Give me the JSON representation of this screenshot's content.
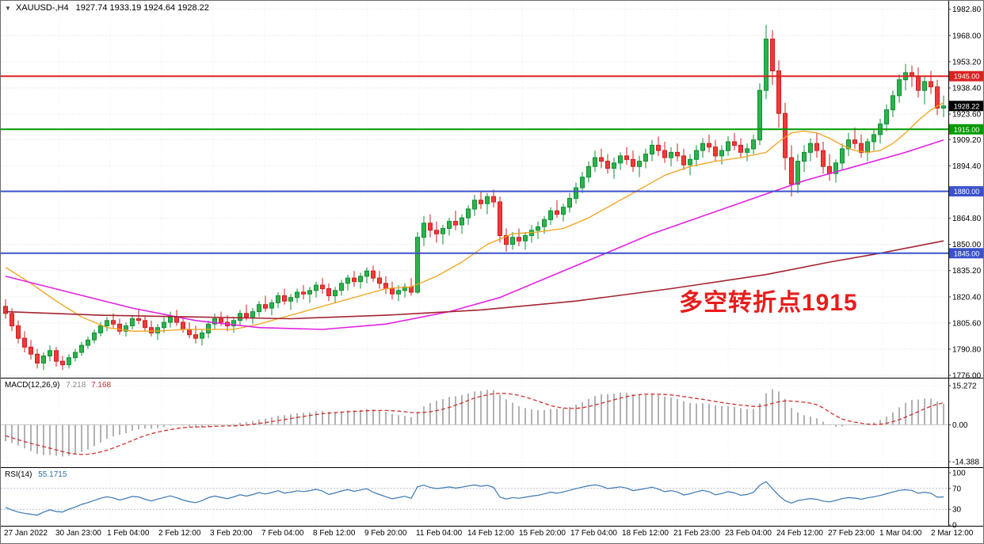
{
  "window": {
    "symbol": "XAUUSD-,H4",
    "ohlc": "1927.74 1933.19 1924.64 1928.22"
  },
  "annotation": {
    "text": "多空转折点1915",
    "color": "#e81c1c"
  },
  "chart_data": {
    "type": "candlestick",
    "symbol": "XAUUSD",
    "timeframe": "H4",
    "title": "XAUUSD-,H4",
    "current_price": 1928.22,
    "current_price_label": "1928.22",
    "y_axis": {
      "min": 1774.7,
      "max": 1987.6,
      "tick_labels": [
        "1982.80",
        "1968.00",
        "1953.20",
        "1938.40",
        "1923.60",
        "1909.20",
        "1894.40",
        "1864.80",
        "1850.00",
        "1835.20",
        "1820.40",
        "1805.60",
        "1790.80",
        "1776.00"
      ]
    },
    "x_tick_labels": [
      "27 Jan 2022",
      "30 Jan 23:00",
      "1 Feb 04:00",
      "2 Feb 12:00",
      "3 Feb 20:00",
      "7 Feb 04:00",
      "8 Feb 12:00",
      "9 Feb 20:00",
      "11 Feb 04:00",
      "14 Feb 12:00",
      "15 Feb 20:00",
      "17 Feb 04:00",
      "18 Feb 12:00",
      "21 Feb 23:00",
      "23 Feb 04:00",
      "24 Feb 12:00",
      "27 Feb 23:00",
      "1 Mar 04:00",
      "2 Mar 12:00"
    ],
    "horizontal_lines": [
      {
        "price": 1945.0,
        "label": "1945.00",
        "color": "#dd2222"
      },
      {
        "price": 1915.0,
        "label": "1915.00",
        "color": "#009a00"
      },
      {
        "price": 1880.0,
        "label": "1880.00",
        "color": "#3b52cc"
      },
      {
        "price": 1845.0,
        "label": "1845.00",
        "color": "#3b52cc"
      }
    ],
    "style": {
      "up_fill": "#2db24d",
      "up_stroke": "#0e8f32",
      "down_fill": "#ef3a3a",
      "down_stroke": "#cf1d1d",
      "macd_hist": "#b2b2b2",
      "macd_signal": "#d03030",
      "rsi_line": "#3a78b5",
      "grid": "#e2e2e2"
    },
    "moving_averages": [
      {
        "name": "fast-orange",
        "color": "#f2a21a",
        "width": 1.3,
        "anchors": [
          [
            0,
            1837
          ],
          [
            4,
            1828
          ],
          [
            8,
            1818
          ],
          [
            12,
            1809
          ],
          [
            16,
            1803
          ],
          [
            20,
            1801
          ],
          [
            24,
            1801
          ],
          [
            28,
            1802
          ],
          [
            32,
            1802
          ],
          [
            36,
            1802
          ],
          [
            40,
            1805
          ],
          [
            44,
            1809
          ],
          [
            48,
            1813
          ],
          [
            52,
            1817
          ],
          [
            56,
            1821
          ],
          [
            60,
            1825
          ],
          [
            64,
            1826
          ],
          [
            68,
            1832
          ],
          [
            72,
            1840
          ],
          [
            76,
            1850
          ],
          [
            80,
            1856
          ],
          [
            84,
            1857
          ],
          [
            88,
            1859
          ],
          [
            92,
            1865
          ],
          [
            96,
            1873
          ],
          [
            100,
            1881
          ],
          [
            104,
            1889
          ],
          [
            108,
            1894
          ],
          [
            112,
            1897
          ],
          [
            116,
            1899
          ],
          [
            120,
            1902
          ],
          [
            122,
            1908
          ],
          [
            124,
            1913
          ],
          [
            126,
            1914
          ],
          [
            128,
            1913
          ],
          [
            130,
            1910
          ],
          [
            132,
            1906
          ],
          [
            134,
            1903
          ],
          [
            136,
            1902
          ],
          [
            138,
            1903
          ],
          [
            140,
            1907
          ],
          [
            142,
            1913
          ],
          [
            144,
            1920
          ],
          [
            146,
            1926
          ],
          [
            148,
            1930
          ]
        ]
      },
      {
        "name": "medium-magenta",
        "color": "#e322e3",
        "width": 1.6,
        "anchors": [
          [
            0,
            1832
          ],
          [
            10,
            1823
          ],
          [
            20,
            1814
          ],
          [
            30,
            1807
          ],
          [
            40,
            1803
          ],
          [
            50,
            1802
          ],
          [
            60,
            1805
          ],
          [
            70,
            1812
          ],
          [
            78,
            1820
          ],
          [
            86,
            1832
          ],
          [
            94,
            1844
          ],
          [
            102,
            1856
          ],
          [
            110,
            1866
          ],
          [
            118,
            1876
          ],
          [
            126,
            1886
          ],
          [
            134,
            1894
          ],
          [
            142,
            1902
          ],
          [
            148,
            1909
          ]
        ]
      },
      {
        "name": "slow-darkred",
        "color": "#a42430",
        "width": 1.6,
        "anchors": [
          [
            0,
            1812
          ],
          [
            15,
            1810
          ],
          [
            30,
            1809
          ],
          [
            45,
            1808
          ],
          [
            60,
            1810
          ],
          [
            75,
            1813
          ],
          [
            90,
            1818
          ],
          [
            105,
            1825
          ],
          [
            120,
            1833
          ],
          [
            130,
            1840
          ],
          [
            138,
            1845
          ],
          [
            148,
            1852
          ]
        ]
      }
    ],
    "pre_closes": [
      1822,
      1824,
      1823,
      1825,
      1827,
      1826,
      1828,
      1830,
      1829,
      1831,
      1833,
      1832,
      1834,
      1836,
      1835,
      1837,
      1839,
      1838,
      1840,
      1842,
      1841,
      1843,
      1845,
      1844,
      1846,
      1847,
      1845,
      1843,
      1841,
      1838,
      1834,
      1829,
      1823,
      1817,
      1812,
      1809,
      1807,
      1810,
      1814,
      1817
    ],
    "candles": [
      [
        1815,
        1819,
        1808,
        1811
      ],
      [
        1811,
        1814,
        1801,
        1804
      ],
      [
        1804,
        1807,
        1794,
        1797
      ],
      [
        1797,
        1801,
        1789,
        1792
      ],
      [
        1792,
        1796,
        1785,
        1788
      ],
      [
        1788,
        1791,
        1780,
        1783
      ],
      [
        1783,
        1789,
        1779,
        1787
      ],
      [
        1787,
        1793,
        1784,
        1790
      ],
      [
        1790,
        1792,
        1781,
        1784
      ],
      [
        1784,
        1787,
        1779,
        1782
      ],
      [
        1782,
        1788,
        1780,
        1786
      ],
      [
        1786,
        1791,
        1784,
        1789
      ],
      [
        1789,
        1795,
        1787,
        1793
      ],
      [
        1793,
        1798,
        1791,
        1796
      ],
      [
        1796,
        1802,
        1794,
        1800
      ],
      [
        1800,
        1806,
        1798,
        1804
      ],
      [
        1804,
        1809,
        1801,
        1807
      ],
      [
        1807,
        1811,
        1803,
        1805
      ],
      [
        1805,
        1808,
        1799,
        1801
      ],
      [
        1801,
        1806,
        1798,
        1804
      ],
      [
        1804,
        1810,
        1802,
        1808
      ],
      [
        1808,
        1813,
        1805,
        1807
      ],
      [
        1807,
        1810,
        1801,
        1803
      ],
      [
        1803,
        1807,
        1798,
        1800
      ],
      [
        1800,
        1805,
        1796,
        1803
      ],
      [
        1803,
        1809,
        1800,
        1806
      ],
      [
        1806,
        1812,
        1803,
        1809
      ],
      [
        1809,
        1813,
        1804,
        1806
      ],
      [
        1806,
        1809,
        1800,
        1802
      ],
      [
        1802,
        1806,
        1797,
        1799
      ],
      [
        1799,
        1804,
        1794,
        1797
      ],
      [
        1797,
        1802,
        1793,
        1800
      ],
      [
        1800,
        1807,
        1797,
        1805
      ],
      [
        1805,
        1811,
        1802,
        1808
      ],
      [
        1808,
        1812,
        1804,
        1806
      ],
      [
        1806,
        1810,
        1801,
        1804
      ],
      [
        1804,
        1809,
        1800,
        1807
      ],
      [
        1807,
        1813,
        1804,
        1811
      ],
      [
        1811,
        1816,
        1807,
        1809
      ],
      [
        1809,
        1814,
        1805,
        1812
      ],
      [
        1812,
        1818,
        1809,
        1816
      ],
      [
        1816,
        1821,
        1812,
        1814
      ],
      [
        1814,
        1819,
        1810,
        1817
      ],
      [
        1817,
        1823,
        1814,
        1821
      ],
      [
        1821,
        1825,
        1816,
        1818
      ],
      [
        1818,
        1822,
        1813,
        1820
      ],
      [
        1820,
        1825,
        1817,
        1823
      ],
      [
        1823,
        1827,
        1819,
        1822
      ],
      [
        1822,
        1826,
        1817,
        1824
      ],
      [
        1824,
        1829,
        1820,
        1827
      ],
      [
        1827,
        1831,
        1822,
        1825
      ],
      [
        1825,
        1828,
        1818,
        1821
      ],
      [
        1821,
        1826,
        1817,
        1824
      ],
      [
        1824,
        1830,
        1821,
        1828
      ],
      [
        1828,
        1833,
        1824,
        1831
      ],
      [
        1831,
        1835,
        1826,
        1829
      ],
      [
        1829,
        1834,
        1825,
        1832
      ],
      [
        1832,
        1837,
        1828,
        1835
      ],
      [
        1835,
        1838,
        1829,
        1831
      ],
      [
        1831,
        1835,
        1825,
        1828
      ],
      [
        1828,
        1832,
        1822,
        1825
      ],
      [
        1825,
        1829,
        1819,
        1822
      ],
      [
        1822,
        1827,
        1818,
        1824
      ],
      [
        1824,
        1828,
        1820,
        1826
      ],
      [
        1826,
        1831,
        1821,
        1823
      ],
      [
        1823,
        1857,
        1822,
        1854
      ],
      [
        1854,
        1866,
        1849,
        1862
      ],
      [
        1862,
        1867,
        1854,
        1858
      ],
      [
        1858,
        1863,
        1851,
        1856
      ],
      [
        1856,
        1861,
        1850,
        1859
      ],
      [
        1859,
        1865,
        1855,
        1863
      ],
      [
        1863,
        1869,
        1858,
        1861
      ],
      [
        1861,
        1867,
        1856,
        1865
      ],
      [
        1865,
        1872,
        1861,
        1870
      ],
      [
        1870,
        1878,
        1866,
        1875
      ],
      [
        1875,
        1880,
        1870,
        1873
      ],
      [
        1873,
        1879,
        1867,
        1877
      ],
      [
        1877,
        1881,
        1871,
        1874
      ],
      [
        1874,
        1877,
        1851,
        1855
      ],
      [
        1855,
        1859,
        1846,
        1850
      ],
      [
        1850,
        1857,
        1847,
        1854
      ],
      [
        1854,
        1859,
        1849,
        1852
      ],
      [
        1852,
        1857,
        1847,
        1855
      ],
      [
        1855,
        1861,
        1851,
        1858
      ],
      [
        1858,
        1863,
        1853,
        1860
      ],
      [
        1860,
        1866,
        1856,
        1864
      ],
      [
        1864,
        1871,
        1861,
        1869
      ],
      [
        1869,
        1875,
        1865,
        1867
      ],
      [
        1867,
        1873,
        1863,
        1871
      ],
      [
        1871,
        1879,
        1868,
        1876
      ],
      [
        1876,
        1885,
        1873,
        1882
      ],
      [
        1882,
        1891,
        1879,
        1888
      ],
      [
        1888,
        1897,
        1885,
        1894
      ],
      [
        1894,
        1903,
        1891,
        1899
      ],
      [
        1899,
        1904,
        1893,
        1897
      ],
      [
        1897,
        1901,
        1890,
        1893
      ],
      [
        1893,
        1899,
        1887,
        1896
      ],
      [
        1896,
        1902,
        1892,
        1900
      ],
      [
        1900,
        1905,
        1895,
        1898
      ],
      [
        1898,
        1903,
        1891,
        1894
      ],
      [
        1894,
        1900,
        1888,
        1897
      ],
      [
        1897,
        1904,
        1893,
        1901
      ],
      [
        1901,
        1909,
        1897,
        1906
      ],
      [
        1906,
        1911,
        1900,
        1903
      ],
      [
        1903,
        1908,
        1896,
        1899
      ],
      [
        1899,
        1905,
        1894,
        1902
      ],
      [
        1902,
        1907,
        1897,
        1900
      ],
      [
        1900,
        1904,
        1892,
        1895
      ],
      [
        1895,
        1901,
        1889,
        1898
      ],
      [
        1898,
        1906,
        1894,
        1903
      ],
      [
        1903,
        1910,
        1899,
        1907
      ],
      [
        1907,
        1912,
        1902,
        1905
      ],
      [
        1905,
        1909,
        1897,
        1900
      ],
      [
        1900,
        1906,
        1895,
        1903
      ],
      [
        1903,
        1911,
        1900,
        1908
      ],
      [
        1908,
        1913,
        1903,
        1906
      ],
      [
        1906,
        1910,
        1899,
        1902
      ],
      [
        1902,
        1907,
        1897,
        1904
      ],
      [
        1904,
        1912,
        1901,
        1909
      ],
      [
        1909,
        1941,
        1906,
        1937
      ],
      [
        1937,
        1974,
        1932,
        1966
      ],
      [
        1966,
        1971,
        1940,
        1948
      ],
      [
        1948,
        1954,
        1916,
        1924
      ],
      [
        1924,
        1930,
        1892,
        1899
      ],
      [
        1899,
        1906,
        1877,
        1884
      ],
      [
        1884,
        1901,
        1879,
        1897
      ],
      [
        1897,
        1906,
        1891,
        1902
      ],
      [
        1902,
        1910,
        1897,
        1907
      ],
      [
        1907,
        1913,
        1899,
        1903
      ],
      [
        1903,
        1908,
        1890,
        1894
      ],
      [
        1894,
        1901,
        1886,
        1890
      ],
      [
        1890,
        1898,
        1885,
        1896
      ],
      [
        1896,
        1907,
        1892,
        1904
      ],
      [
        1904,
        1913,
        1900,
        1909
      ],
      [
        1909,
        1916,
        1904,
        1907
      ],
      [
        1907,
        1912,
        1899,
        1902
      ],
      [
        1902,
        1910,
        1897,
        1908
      ],
      [
        1908,
        1915,
        1903,
        1912
      ],
      [
        1912,
        1921,
        1907,
        1918
      ],
      [
        1918,
        1929,
        1914,
        1926
      ],
      [
        1926,
        1937,
        1922,
        1934
      ],
      [
        1934,
        1946,
        1930,
        1943
      ],
      [
        1943,
        1952,
        1937,
        1947
      ],
      [
        1947,
        1951,
        1939,
        1945
      ],
      [
        1945,
        1950,
        1933,
        1937
      ],
      [
        1937,
        1945,
        1929,
        1942
      ],
      [
        1942,
        1948,
        1935,
        1939
      ],
      [
        1939,
        1943,
        1923,
        1927
      ],
      [
        1927,
        1934,
        1922,
        1928.2
      ]
    ],
    "indicators": {
      "macd": {
        "label": "MACD(12,26,9)",
        "value_main": "7.218",
        "value_signal": "7.168",
        "fast": 12,
        "slow": 26,
        "signal": 9,
        "axis": {
          "max": "15.272",
          "zero": "0.00",
          "min": "-14.388"
        }
      },
      "rsi": {
        "label": "RSI(14)",
        "value_text": "55.1715",
        "period": 14,
        "levels": [
          100,
          70,
          30,
          0
        ],
        "dashed_levels": [
          70,
          30
        ]
      }
    }
  }
}
